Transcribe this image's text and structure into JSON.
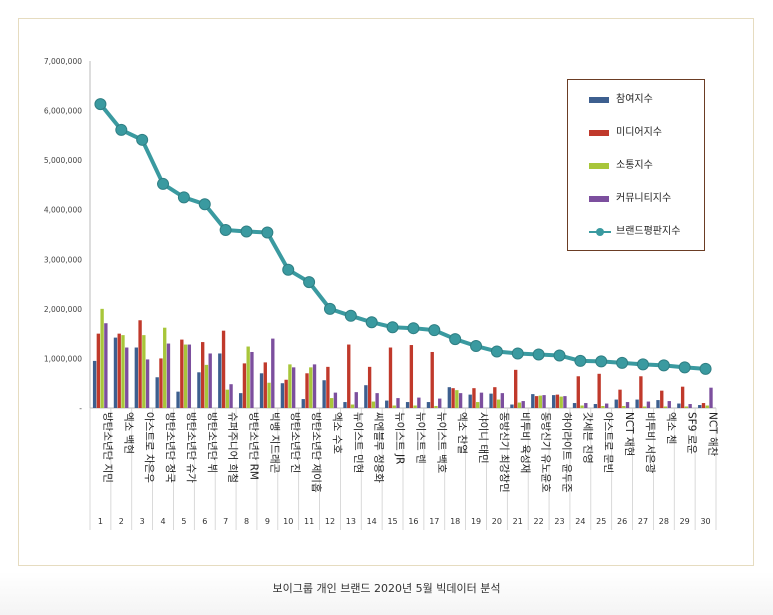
{
  "caption": "보이그룹 개인 브랜드 2020년 5월 빅데이터 분석",
  "colors": {
    "participation": "#3d5f8f",
    "media": "#c0392b",
    "communication": "#a8c63a",
    "community": "#7c4f9e",
    "brand": "#3a9aa0"
  },
  "chart_data": {
    "type": "bar",
    "title": "",
    "xlabel": "",
    "ylabel": "",
    "ylim": [
      0,
      7000000
    ],
    "y_ticks": [
      "-",
      "1,000,000",
      "2,000,000",
      "3,000,000",
      "4,000,000",
      "5,000,000",
      "6,000,000",
      "7,000,000"
    ],
    "legend_position": "top-right",
    "categories": [
      "방탄소년단 지민",
      "엑소 백현",
      "아스트로 차은우",
      "방탄소년단 정국",
      "방탄소년단 슈가",
      "방탄소년단 뷔",
      "슈퍼주니어 희철",
      "방탄소년단 RM",
      "빅뱅 지드래곤",
      "방탄소년단 진",
      "방탄소년단 제이홉",
      "엑소 수호",
      "뉴이스트 민현",
      "씨엔블루 정용화",
      "뉴이스트 JR",
      "뉴이스트 렌",
      "뉴이스트 백호",
      "엑소 찬열",
      "샤이니 태민",
      "동방신기 최강창민",
      "비투비 육성재",
      "동방신기 유노윤호",
      "하이라이트 윤두준",
      "갓세븐 진영",
      "아스트로 문빈",
      "NCT 재현",
      "비투비 서은광",
      "엑소 첸",
      "SF9 로운",
      "NCT 해찬"
    ],
    "numbers": [
      "1",
      "2",
      "3",
      "4",
      "5",
      "6",
      "7",
      "8",
      "9",
      "10",
      "11",
      "12",
      "13",
      "14",
      "15",
      "16",
      "17",
      "18",
      "19",
      "20",
      "21",
      "22",
      "23",
      "24",
      "25",
      "26",
      "27",
      "28",
      "29",
      "30"
    ],
    "series": [
      {
        "name": "참여지수",
        "kind": "bar",
        "values": [
          950000,
          1420000,
          1220000,
          620000,
          330000,
          720000,
          1100000,
          300000,
          700000,
          500000,
          180000,
          560000,
          120000,
          460000,
          150000,
          120000,
          120000,
          420000,
          270000,
          290000,
          70000,
          280000,
          260000,
          100000,
          80000,
          170000,
          170000,
          160000,
          90000,
          60000
        ]
      },
      {
        "name": "미디어지수",
        "kind": "bar",
        "values": [
          1500000,
          1500000,
          1770000,
          1000000,
          1380000,
          1330000,
          1560000,
          900000,
          920000,
          570000,
          700000,
          830000,
          1280000,
          830000,
          1220000,
          1270000,
          1130000,
          400000,
          400000,
          420000,
          770000,
          240000,
          270000,
          640000,
          690000,
          370000,
          640000,
          350000,
          430000,
          100000
        ]
      },
      {
        "name": "소통지수",
        "kind": "bar",
        "values": [
          2000000,
          1470000,
          1470000,
          1620000,
          1280000,
          870000,
          370000,
          1240000,
          510000,
          880000,
          820000,
          200000,
          70000,
          130000,
          50000,
          50000,
          40000,
          360000,
          120000,
          170000,
          110000,
          250000,
          230000,
          50000,
          40000,
          40000,
          30000,
          30000,
          30000,
          50000
        ]
      },
      {
        "name": "커뮤니티지수",
        "kind": "bar",
        "values": [
          1710000,
          1220000,
          980000,
          1300000,
          1280000,
          1100000,
          480000,
          1130000,
          1400000,
          820000,
          880000,
          310000,
          320000,
          300000,
          200000,
          210000,
          190000,
          300000,
          310000,
          300000,
          140000,
          260000,
          240000,
          100000,
          90000,
          120000,
          130000,
          140000,
          80000,
          410000
        ]
      },
      {
        "name": "브랜드평판지수",
        "kind": "line",
        "values": [
          6130000,
          5610000,
          5410000,
          4520000,
          4250000,
          4110000,
          3590000,
          3560000,
          3540000,
          2790000,
          2540000,
          2000000,
          1860000,
          1730000,
          1630000,
          1610000,
          1570000,
          1390000,
          1250000,
          1140000,
          1100000,
          1080000,
          1060000,
          950000,
          940000,
          910000,
          880000,
          860000,
          820000,
          790000
        ]
      }
    ]
  }
}
